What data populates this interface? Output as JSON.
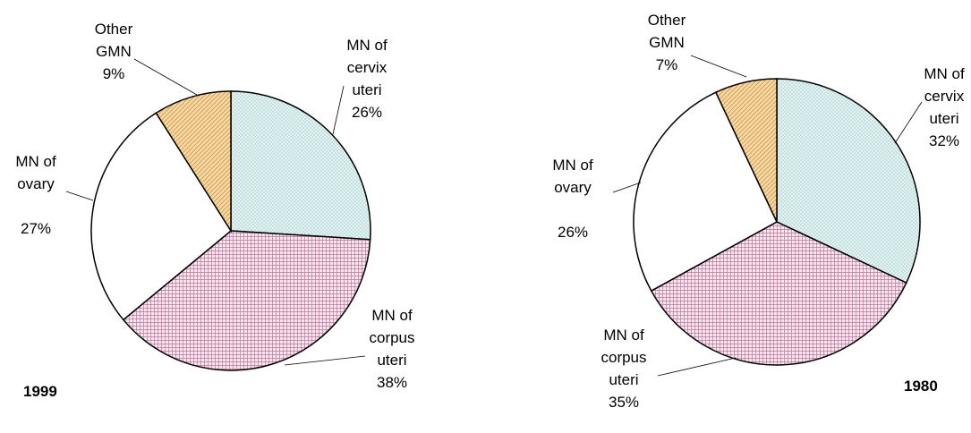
{
  "chart_data": [
    {
      "type": "pie",
      "title": "1999",
      "categories": [
        "MN of cervix uteri",
        "MN of corpus uteri",
        "MN of ovary",
        "Other GMN"
      ],
      "values": [
        26,
        38,
        27,
        9
      ],
      "value_labels": [
        "26%",
        "38%",
        "27%",
        "9%"
      ],
      "colors": [
        "#dff1f1",
        "#f3dbe6",
        "#ffffff",
        "#f6cf8c"
      ]
    },
    {
      "type": "pie",
      "title": "1980",
      "categories": [
        "MN of cervix uteri",
        "MN of corpus uteri",
        "MN of ovary",
        "Other GMN"
      ],
      "values": [
        32,
        35,
        26,
        7
      ],
      "value_labels": [
        "32%",
        "35%",
        "26%",
        "7%"
      ],
      "colors": [
        "#dff1f1",
        "#f3dbe6",
        "#ffffff",
        "#f6cf8c"
      ]
    }
  ]
}
